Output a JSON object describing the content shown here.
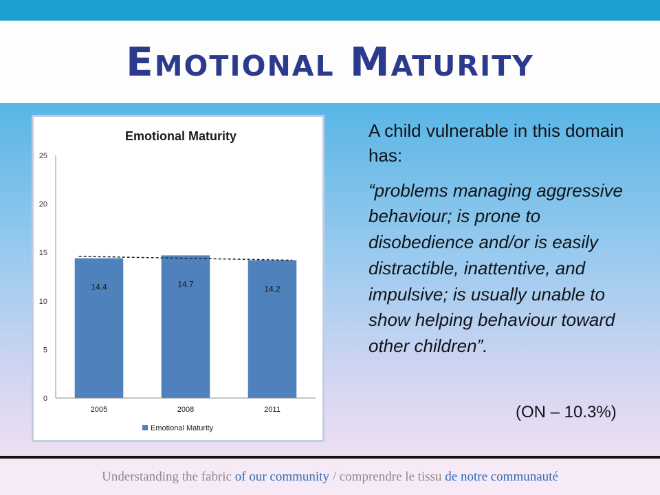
{
  "slide": {
    "title": "Emotional Maturity",
    "intro": "A child vulnerable in this domain has:",
    "quote": "“problems managing aggressive behaviour; is prone to disobedience and/or is easily distractible, inattentive, and impulsive; is usually unable to show helping behaviour toward other children”.",
    "note": "(ON – 10.3%)"
  },
  "footer": {
    "part1": "Understanding the fabric ",
    "part2": "of our community",
    "part3": " / comprendre le tissu ",
    "part4": "de notre communauté"
  },
  "colors": {
    "bar": "#4f81bd",
    "title": "#2b3a8c",
    "footer_accent": "#2f6cb5"
  },
  "chart_data": {
    "type": "bar",
    "title": "Emotional Maturity",
    "categories": [
      "2005",
      "2008",
      "2011"
    ],
    "series": [
      {
        "name": "Emotional Maturity",
        "values": [
          14.4,
          14.7,
          14.2
        ]
      }
    ],
    "data_labels": [
      "14.4",
      "14.7",
      "14.2"
    ],
    "ylim": [
      0,
      25
    ],
    "yticks": [
      0,
      5,
      10,
      15,
      20,
      25
    ],
    "reference_line": {
      "style": "dashed",
      "y_start": 14.6,
      "y_end": 14.2
    },
    "legend": "bottom",
    "grid": false
  }
}
